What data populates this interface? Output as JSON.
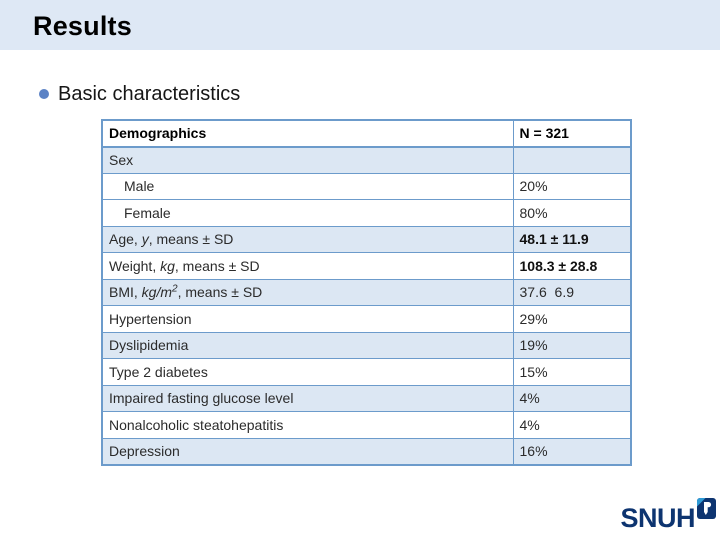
{
  "slide": {
    "title": "Results",
    "bullet_text": "Basic characteristics"
  },
  "table": {
    "header": {
      "col1": "Demographics",
      "col2": "N = 321"
    },
    "rows": [
      {
        "label": [
          {
            "t": "Sex"
          }
        ],
        "value": "",
        "shaded": true,
        "indent": false,
        "value_bold": false
      },
      {
        "label": [
          {
            "t": "Male"
          }
        ],
        "value": "20%",
        "shaded": false,
        "indent": true,
        "value_bold": false
      },
      {
        "label": [
          {
            "t": "Female"
          }
        ],
        "value": "80%",
        "shaded": false,
        "indent": true,
        "value_bold": false
      },
      {
        "label": [
          {
            "t": "Age, "
          },
          {
            "t": "y",
            "i": true
          },
          {
            "t": ", means ± SD"
          }
        ],
        "value": "48.1 ± 11.9",
        "shaded": true,
        "indent": false,
        "value_bold": true
      },
      {
        "label": [
          {
            "t": "Weight, "
          },
          {
            "t": "kg",
            "i": true
          },
          {
            "t": ", means ± SD"
          }
        ],
        "value": "108.3 ± 28.8",
        "shaded": false,
        "indent": false,
        "value_bold": true
      },
      {
        "label": [
          {
            "t": "BMI, "
          },
          {
            "t": "kg/m",
            "i": true
          },
          {
            "t": "2",
            "i": true,
            "sup": true
          },
          {
            "t": ", means ± SD"
          }
        ],
        "value": "37.6  6.9",
        "shaded": true,
        "indent": false,
        "value_bold": false
      },
      {
        "label": [
          {
            "t": "Hypertension"
          }
        ],
        "value": "29%",
        "shaded": false,
        "indent": false,
        "value_bold": false
      },
      {
        "label": [
          {
            "t": "Dyslipidemia"
          }
        ],
        "value": "19%",
        "shaded": true,
        "indent": false,
        "value_bold": false
      },
      {
        "label": [
          {
            "t": "Type 2 diabetes"
          }
        ],
        "value": "15%",
        "shaded": false,
        "indent": false,
        "value_bold": false
      },
      {
        "label": [
          {
            "t": "Impaired fasting glucose level"
          }
        ],
        "value": "4%",
        "shaded": true,
        "indent": false,
        "value_bold": false
      },
      {
        "label": [
          {
            "t": "Nonalcoholic steatohepatitis"
          }
        ],
        "value": "4%",
        "shaded": false,
        "indent": false,
        "value_bold": false
      },
      {
        "label": [
          {
            "t": "Depression"
          }
        ],
        "value": "16%",
        "shaded": true,
        "indent": false,
        "value_bold": false
      }
    ]
  },
  "logo": {
    "text": "SNUH"
  },
  "colors": {
    "banner_bg": "#dee8f5",
    "table_border": "#6c9bcb",
    "band_fill": "#dce7f3",
    "bullet": "#5b82c5",
    "logo_navy": "#0d3470",
    "logo_accent": "#2e9bd6"
  }
}
